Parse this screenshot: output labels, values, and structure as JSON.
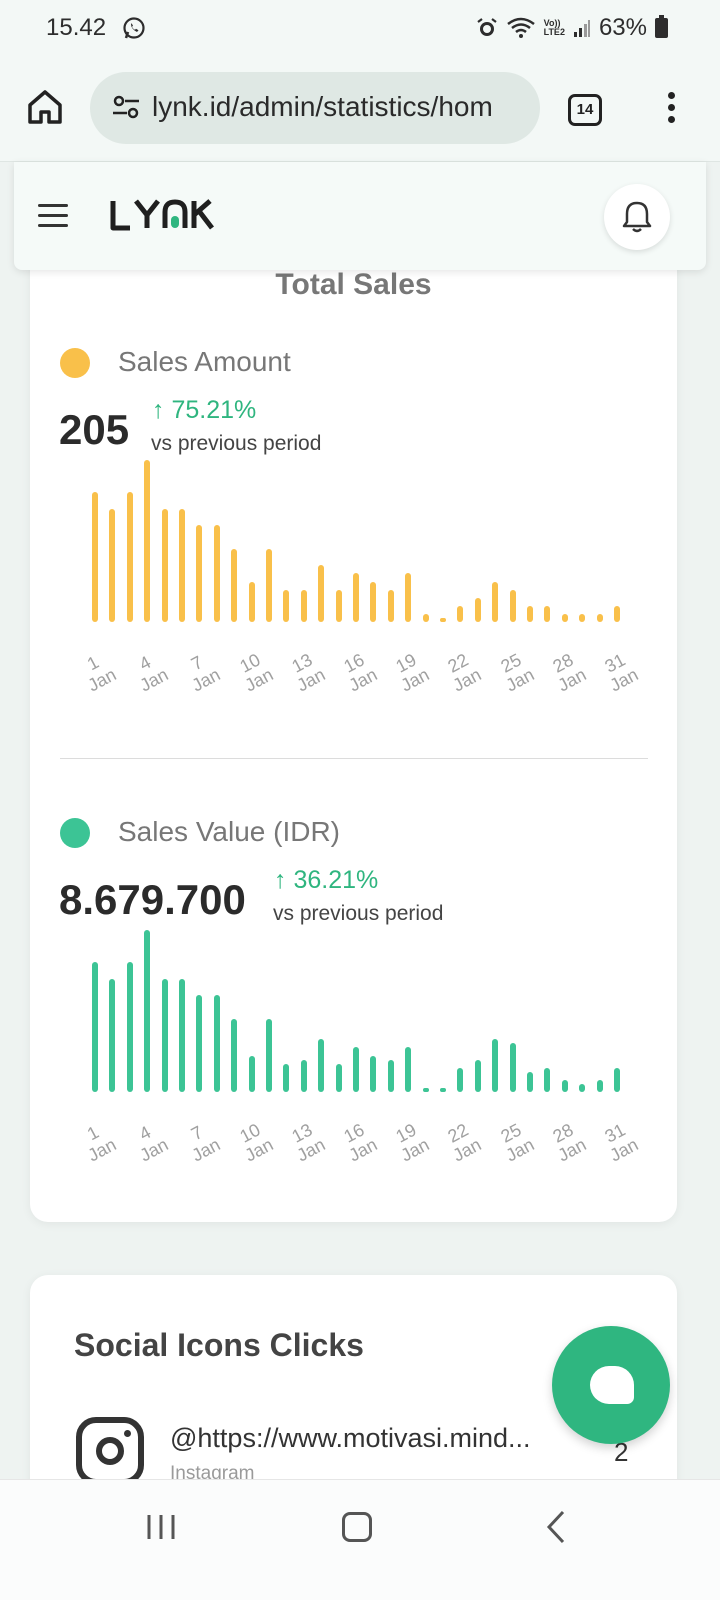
{
  "status_bar": {
    "time": "15.42",
    "network_label": "Vo))\nLTE2",
    "battery": "63%"
  },
  "browser": {
    "url": "lynk.id/admin/statistics/hom",
    "tab_count": "14"
  },
  "header": {
    "logo": "LYNK"
  },
  "sales_card": {
    "title": "Total Sales",
    "amount": {
      "label": "Sales Amount",
      "value": "205",
      "change": "↑ 75.21%",
      "change_text": "vs previous period",
      "color": "#f9c04a"
    },
    "value_idr": {
      "label": "Sales Value (IDR)",
      "value": "8.679.700",
      "change": "↑ 36.21%",
      "change_text": "vs previous period",
      "color": "#3cc495"
    }
  },
  "chart_data": [
    {
      "type": "bar",
      "series": [
        {
          "name": "Sales Amount",
          "values": [
            16,
            14,
            16,
            20,
            14,
            14,
            12,
            12,
            9,
            5,
            9,
            4,
            4,
            7,
            4,
            6,
            5,
            4,
            6,
            1,
            0,
            2,
            3,
            5,
            4,
            2,
            2,
            1,
            1,
            1,
            2
          ]
        }
      ],
      "categories": [
        "1 Jan",
        "2 Jan",
        "3 Jan",
        "4 Jan",
        "5 Jan",
        "6 Jan",
        "7 Jan",
        "8 Jan",
        "9 Jan",
        "10 Jan",
        "11 Jan",
        "12 Jan",
        "13 Jan",
        "14 Jan",
        "15 Jan",
        "16 Jan",
        "17 Jan",
        "18 Jan",
        "19 Jan",
        "20 Jan",
        "21 Jan",
        "22 Jan",
        "23 Jan",
        "24 Jan",
        "25 Jan",
        "26 Jan",
        "27 Jan",
        "28 Jan",
        "29 Jan",
        "30 Jan",
        "31 Jan"
      ],
      "tick_labels": [
        {
          "d": "1",
          "m": "Jan"
        },
        {
          "d": "4",
          "m": "Jan"
        },
        {
          "d": "7",
          "m": "Jan"
        },
        {
          "d": "10",
          "m": "Jan"
        },
        {
          "d": "13",
          "m": "Jan"
        },
        {
          "d": "16",
          "m": "Jan"
        },
        {
          "d": "19",
          "m": "Jan"
        },
        {
          "d": "22",
          "m": "Jan"
        },
        {
          "d": "25",
          "m": "Jan"
        },
        {
          "d": "28",
          "m": "Jan"
        },
        {
          "d": "31",
          "m": "Jan"
        }
      ],
      "tick_every": 3,
      "ylim": [
        0,
        20
      ],
      "color": "#f9c04a"
    },
    {
      "type": "bar",
      "series": [
        {
          "name": "Sales Value (IDR)",
          "values": [
            16,
            14,
            16,
            20,
            14,
            14,
            12,
            12,
            9,
            4.5,
            9,
            3.5,
            4,
            6.5,
            3.5,
            5.5,
            4.5,
            4,
            5.5,
            0.5,
            0,
            3,
            4,
            6.5,
            6,
            2.5,
            3,
            1.5,
            1,
            1.5,
            3
          ]
        }
      ],
      "categories": [
        "1 Jan",
        "2 Jan",
        "3 Jan",
        "4 Jan",
        "5 Jan",
        "6 Jan",
        "7 Jan",
        "8 Jan",
        "9 Jan",
        "10 Jan",
        "11 Jan",
        "12 Jan",
        "13 Jan",
        "14 Jan",
        "15 Jan",
        "16 Jan",
        "17 Jan",
        "18 Jan",
        "19 Jan",
        "20 Jan",
        "21 Jan",
        "22 Jan",
        "23 Jan",
        "24 Jan",
        "25 Jan",
        "26 Jan",
        "27 Jan",
        "28 Jan",
        "29 Jan",
        "30 Jan",
        "31 Jan"
      ],
      "tick_labels": [
        {
          "d": "1",
          "m": "Jan"
        },
        {
          "d": "4",
          "m": "Jan"
        },
        {
          "d": "7",
          "m": "Jan"
        },
        {
          "d": "10",
          "m": "Jan"
        },
        {
          "d": "13",
          "m": "Jan"
        },
        {
          "d": "16",
          "m": "Jan"
        },
        {
          "d": "19",
          "m": "Jan"
        },
        {
          "d": "22",
          "m": "Jan"
        },
        {
          "d": "25",
          "m": "Jan"
        },
        {
          "d": "28",
          "m": "Jan"
        },
        {
          "d": "31",
          "m": "Jan"
        }
      ],
      "tick_every": 3,
      "ylim": [
        0,
        20
      ],
      "color": "#3cc495"
    }
  ],
  "social_card": {
    "title": "Social Icons Clicks",
    "items": [
      {
        "handle": "@https://www.motivasi.mind...",
        "platform": "Instagram",
        "count": "2",
        "icon": "instagram-icon"
      }
    ]
  },
  "fab": {
    "icon": "chat-bubble-icon",
    "color": "#2fb680"
  }
}
